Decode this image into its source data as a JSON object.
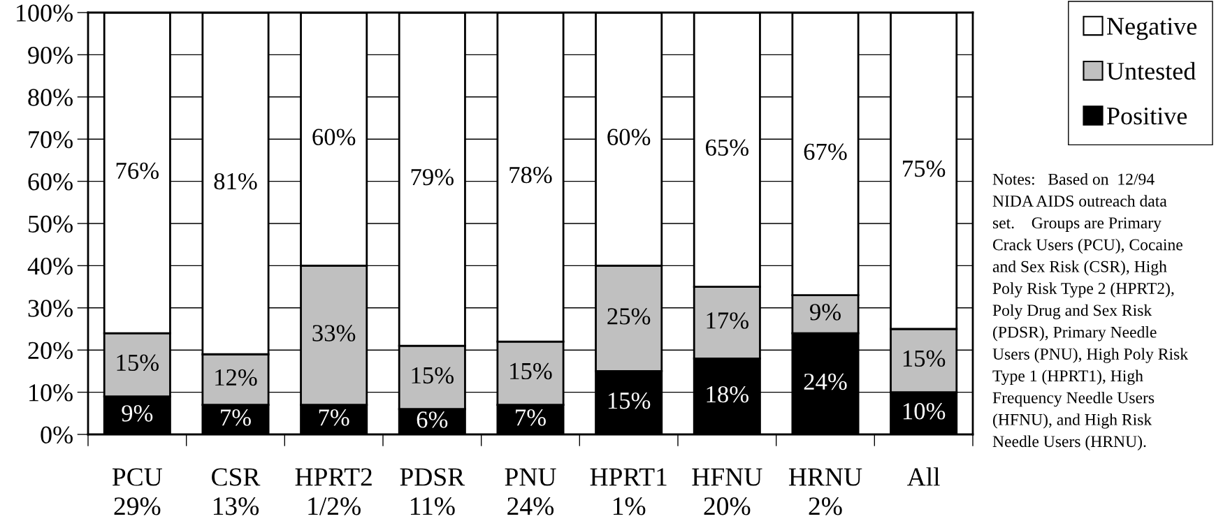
{
  "chart_data": {
    "type": "bar",
    "stacked": true,
    "categories": [
      "PCU\n29%",
      "CSR\n13%",
      "HPRT2\n1/2%",
      "PDSR\n11%",
      "PNU\n24%",
      "HPRT1\n1%",
      "HFNU\n20%",
      "HRNU\n2%",
      "All"
    ],
    "series": [
      {
        "name": "Positive",
        "color": "#000000",
        "values": [
          9,
          7,
          7,
          6,
          7,
          15,
          18,
          24,
          10
        ],
        "value_labels": [
          "9%",
          "7%",
          "7%",
          "6%",
          "7%",
          "15%",
          "18%",
          "24%",
          "10%"
        ]
      },
      {
        "name": "Untested",
        "color": "#c0c0c0",
        "values": [
          15,
          12,
          33,
          15,
          15,
          25,
          17,
          9,
          15
        ],
        "value_labels": [
          "15%",
          "12%",
          "33%",
          "15%",
          "15%",
          "25%",
          "17%",
          "9%",
          "15%"
        ]
      },
      {
        "name": "Negative",
        "color": "#ffffff",
        "values": [
          76,
          81,
          60,
          79,
          78,
          60,
          65,
          67,
          75
        ],
        "value_labels": [
          "76%",
          "81%",
          "60%",
          "79%",
          "78%",
          "60%",
          "65%",
          "67%",
          "75%"
        ]
      }
    ],
    "ylim": [
      0,
      100
    ],
    "yticks": [
      {
        "value": 0,
        "label": "0%"
      },
      {
        "value": 10,
        "label": "10%"
      },
      {
        "value": 20,
        "label": "20%"
      },
      {
        "value": 30,
        "label": "30%"
      },
      {
        "value": 40,
        "label": "40%"
      },
      {
        "value": 50,
        "label": "50%"
      },
      {
        "value": 60,
        "label": "60%"
      },
      {
        "value": 70,
        "label": "70%"
      },
      {
        "value": 80,
        "label": "80%"
      },
      {
        "value": 90,
        "label": "90%"
      },
      {
        "value": 100,
        "label": "100%"
      }
    ],
    "grid": "y",
    "legend": "top right",
    "annotations": [
      "Notes:   Based on  12/94\nNIDA AIDS outreach data\nset.    Groups are Primary\nCrack Users (PCU), Cocaine\nand Sex Risk (CSR), High\nPoly Risk Type 2 (HPRT2),\nPoly Drug and Sex Risk\n(PDSR), Primary Needle\nUsers (PNU), High Poly Risk\nType 1 (HPRT1), High\nFrequency Needle Users\n(HFNU), and High Risk\nNeedle Users (HRNU)."
    ]
  }
}
